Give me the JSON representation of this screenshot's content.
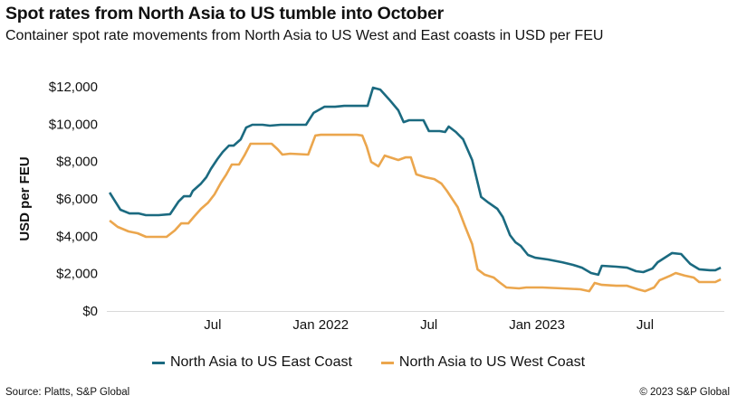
{
  "header": {
    "title": "Spot rates from North Asia to US tumble into October",
    "subtitle": "Container spot rate movements from North Asia to US West and East coasts in USD per FEU"
  },
  "footer": {
    "source": "Source: Platts, S&P Global",
    "copyright": "© 2023 S&P Global"
  },
  "chart_data": {
    "type": "line",
    "title": "Spot rates from North Asia to US tumble into October",
    "xlabel": "",
    "ylabel": "USD per FEU",
    "x_unit": "months since Jan 2021",
    "xlim": [
      0,
      35
    ],
    "ylim": [
      0,
      12000
    ],
    "yticks": [
      0,
      2000,
      4000,
      6000,
      8000,
      10000,
      12000
    ],
    "ytick_labels": [
      "$0",
      "$2,000",
      "$4,000",
      "$6,000",
      "$8,000",
      "$10,000",
      "$12,000"
    ],
    "xticks": [
      6,
      12,
      18,
      24,
      30
    ],
    "xtick_labels": [
      "Jul",
      "Jan 2022",
      "Jul",
      "Jan 2023",
      "Jul"
    ],
    "grid": false,
    "legend_position": "bottom",
    "series": [
      {
        "name": "North Asia to US East Coast",
        "color": "#1b6a80",
        "points": [
          [
            0.28,
            6340
          ],
          [
            0.88,
            5420
          ],
          [
            1.38,
            5220
          ],
          [
            1.9,
            5220
          ],
          [
            2.29,
            5130
          ],
          [
            3.0,
            5130
          ],
          [
            3.64,
            5180
          ],
          [
            4.1,
            5850
          ],
          [
            4.4,
            6140
          ],
          [
            4.75,
            6140
          ],
          [
            4.9,
            6430
          ],
          [
            5.35,
            6820
          ],
          [
            5.65,
            7160
          ],
          [
            5.9,
            7600
          ],
          [
            6.26,
            8130
          ],
          [
            6.56,
            8510
          ],
          [
            6.9,
            8850
          ],
          [
            7.16,
            8850
          ],
          [
            7.56,
            9190
          ],
          [
            7.86,
            9820
          ],
          [
            8.2,
            9970
          ],
          [
            8.77,
            9970
          ],
          [
            9.17,
            9920
          ],
          [
            9.78,
            9970
          ],
          [
            11.18,
            9970
          ],
          [
            11.6,
            10600
          ],
          [
            12.2,
            10930
          ],
          [
            12.8,
            10930
          ],
          [
            13.3,
            10980
          ],
          [
            14.6,
            10980
          ],
          [
            14.9,
            11950
          ],
          [
            15.3,
            11850
          ],
          [
            15.8,
            11320
          ],
          [
            16.3,
            10740
          ],
          [
            16.6,
            10110
          ],
          [
            16.9,
            10210
          ],
          [
            17.3,
            10210
          ],
          [
            17.7,
            10210
          ],
          [
            18.0,
            9630
          ],
          [
            18.6,
            9630
          ],
          [
            18.9,
            9580
          ],
          [
            19.1,
            9870
          ],
          [
            19.5,
            9580
          ],
          [
            19.9,
            9190
          ],
          [
            20.4,
            8080
          ],
          [
            20.9,
            6100
          ],
          [
            21.3,
            5800
          ],
          [
            21.8,
            5470
          ],
          [
            22.1,
            5030
          ],
          [
            22.5,
            4060
          ],
          [
            22.8,
            3680
          ],
          [
            23.1,
            3480
          ],
          [
            23.5,
            3000
          ],
          [
            23.9,
            2850
          ],
          [
            24.6,
            2760
          ],
          [
            25.4,
            2610
          ],
          [
            26.0,
            2470
          ],
          [
            26.5,
            2320
          ],
          [
            27.0,
            2030
          ],
          [
            27.4,
            1940
          ],
          [
            27.6,
            2420
          ],
          [
            28.4,
            2370
          ],
          [
            29.0,
            2320
          ],
          [
            29.5,
            2130
          ],
          [
            29.9,
            2080
          ],
          [
            30.4,
            2270
          ],
          [
            30.7,
            2610
          ],
          [
            31.5,
            3100
          ],
          [
            32.0,
            3050
          ],
          [
            32.5,
            2520
          ],
          [
            33.0,
            2230
          ],
          [
            33.6,
            2180
          ],
          [
            33.9,
            2180
          ],
          [
            34.2,
            2320
          ]
        ]
      },
      {
        "name": "North Asia to US West Coast",
        "color": "#eba64d",
        "points": [
          [
            0.28,
            4840
          ],
          [
            0.73,
            4500
          ],
          [
            1.33,
            4260
          ],
          [
            1.83,
            4160
          ],
          [
            2.3,
            3970
          ],
          [
            3.0,
            3970
          ],
          [
            3.44,
            3970
          ],
          [
            3.9,
            4310
          ],
          [
            4.25,
            4690
          ],
          [
            4.65,
            4690
          ],
          [
            4.95,
            5030
          ],
          [
            5.35,
            5470
          ],
          [
            5.75,
            5800
          ],
          [
            6.1,
            6240
          ],
          [
            6.46,
            6870
          ],
          [
            6.76,
            7310
          ],
          [
            7.06,
            7840
          ],
          [
            7.46,
            7840
          ],
          [
            7.76,
            8320
          ],
          [
            8.1,
            8950
          ],
          [
            9.27,
            8950
          ],
          [
            9.6,
            8660
          ],
          [
            9.87,
            8370
          ],
          [
            10.3,
            8420
          ],
          [
            11.3,
            8370
          ],
          [
            11.7,
            9390
          ],
          [
            12.0,
            9430
          ],
          [
            14.0,
            9430
          ],
          [
            14.3,
            9390
          ],
          [
            14.55,
            8800
          ],
          [
            14.8,
            7980
          ],
          [
            15.2,
            7740
          ],
          [
            15.55,
            8320
          ],
          [
            16.3,
            8080
          ],
          [
            16.7,
            8220
          ],
          [
            17.0,
            8220
          ],
          [
            17.3,
            7310
          ],
          [
            17.8,
            7160
          ],
          [
            18.3,
            7060
          ],
          [
            18.7,
            6820
          ],
          [
            19.0,
            6430
          ],
          [
            19.6,
            5560
          ],
          [
            20.0,
            4550
          ],
          [
            20.4,
            3580
          ],
          [
            20.7,
            2230
          ],
          [
            21.1,
            1940
          ],
          [
            21.6,
            1790
          ],
          [
            21.9,
            1550
          ],
          [
            22.3,
            1260
          ],
          [
            23.0,
            1210
          ],
          [
            23.4,
            1260
          ],
          [
            24.3,
            1260
          ],
          [
            25.4,
            1210
          ],
          [
            26.4,
            1160
          ],
          [
            26.9,
            1060
          ],
          [
            27.2,
            1500
          ],
          [
            27.6,
            1400
          ],
          [
            28.4,
            1350
          ],
          [
            29.0,
            1350
          ],
          [
            29.6,
            1160
          ],
          [
            30.0,
            1060
          ],
          [
            30.5,
            1260
          ],
          [
            30.8,
            1640
          ],
          [
            31.4,
            1890
          ],
          [
            31.7,
            2030
          ],
          [
            32.2,
            1890
          ],
          [
            32.7,
            1790
          ],
          [
            33.0,
            1550
          ],
          [
            33.9,
            1550
          ],
          [
            34.2,
            1690
          ]
        ]
      }
    ]
  }
}
